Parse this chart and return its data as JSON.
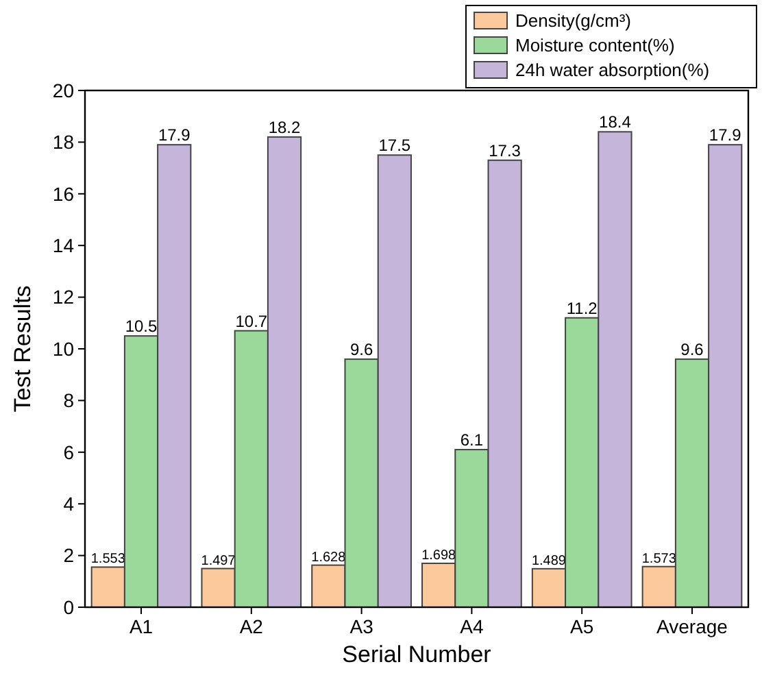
{
  "chart_data": {
    "type": "bar",
    "xlabel": "Serial Number",
    "ylabel": "Test Results",
    "categories": [
      "A1",
      "A2",
      "A3",
      "A4",
      "A5",
      "Average"
    ],
    "series": [
      {
        "name": "Density(g/cm³)",
        "color": "#fbc99b",
        "values": [
          1.553,
          1.497,
          1.628,
          1.698,
          1.489,
          1.573
        ]
      },
      {
        "name": "Moisture content(%)",
        "color": "#9ad99a",
        "values": [
          10.5,
          10.7,
          9.6,
          6.1,
          11.2,
          9.6
        ]
      },
      {
        "name": "24h water absorption(%)",
        "color": "#c5b5da",
        "values": [
          17.9,
          18.2,
          17.5,
          17.3,
          18.4,
          17.9
        ]
      }
    ],
    "ylim": [
      0,
      20
    ],
    "yticks": [
      0,
      2,
      4,
      6,
      8,
      10,
      12,
      14,
      16,
      18,
      20
    ],
    "data_labels": true,
    "legend": "top right",
    "grid": false
  }
}
